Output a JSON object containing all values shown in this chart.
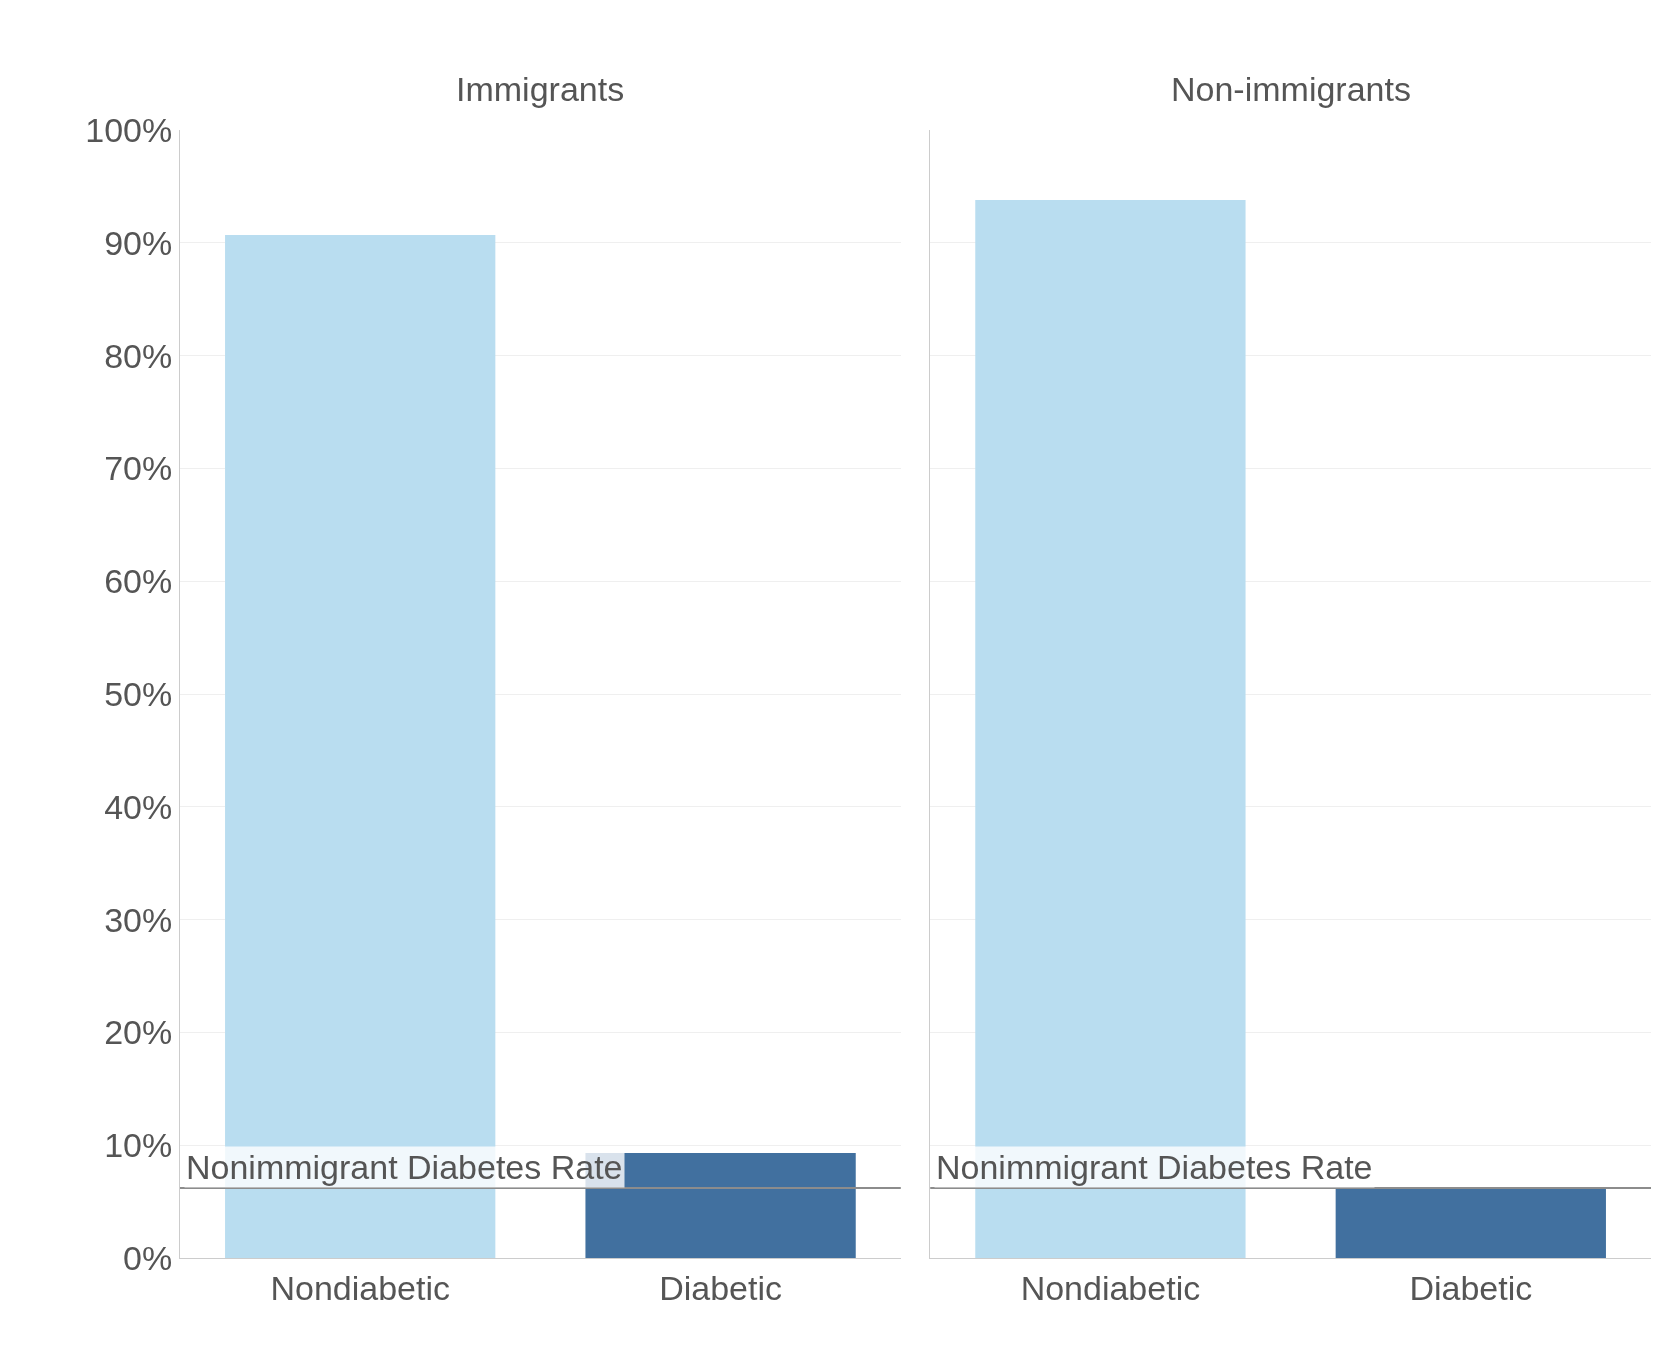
{
  "chart_data": [
    {
      "type": "bar",
      "title": "Immigrants",
      "categories": [
        "Nondiabetic",
        "Diabetic"
      ],
      "values": [
        90.7,
        9.3
      ],
      "colors": [
        "#b9ddf0",
        "#41709f"
      ],
      "ylim": [
        0,
        100
      ],
      "yticks": [
        {
          "value": 0,
          "label": "0%"
        },
        {
          "value": 10,
          "label": "10%"
        },
        {
          "value": 20,
          "label": "20%"
        },
        {
          "value": 30,
          "label": "30%"
        },
        {
          "value": 40,
          "label": "40%"
        },
        {
          "value": 50,
          "label": "50%"
        },
        {
          "value": 60,
          "label": "60%"
        },
        {
          "value": 70,
          "label": "70%"
        },
        {
          "value": 80,
          "label": "80%"
        },
        {
          "value": 90,
          "label": "90%"
        },
        {
          "value": 100,
          "label": "100%"
        }
      ],
      "ref_lines": [
        {
          "axis": "y",
          "value": 6.2,
          "label": "Nonimmigrant Diabetes Rate",
          "color": "#8c8c8c"
        }
      ],
      "grid": "y"
    },
    {
      "type": "bar",
      "title": "Non-immigrants",
      "categories": [
        "Nondiabetic",
        "Diabetic"
      ],
      "values": [
        93.8,
        6.2
      ],
      "colors": [
        "#b9ddf0",
        "#41709f"
      ],
      "ylim": [
        0,
        100
      ],
      "yticks": [
        {
          "value": 0,
          "label": null
        },
        {
          "value": 10,
          "label": null
        },
        {
          "value": 20,
          "label": null
        },
        {
          "value": 30,
          "label": null
        },
        {
          "value": 40,
          "label": null
        },
        {
          "value": 50,
          "label": null
        },
        {
          "value": 60,
          "label": null
        },
        {
          "value": 70,
          "label": null
        },
        {
          "value": 80,
          "label": null
        },
        {
          "value": 90,
          "label": null
        },
        {
          "value": 100,
          "label": null
        }
      ],
      "ref_lines": [
        {
          "axis": "y",
          "value": 6.2,
          "label": "Nonimmigrant Diabetes Rate",
          "color": "#8c8c8c"
        }
      ],
      "grid": "y",
      "tick_labels": "x"
    }
  ]
}
